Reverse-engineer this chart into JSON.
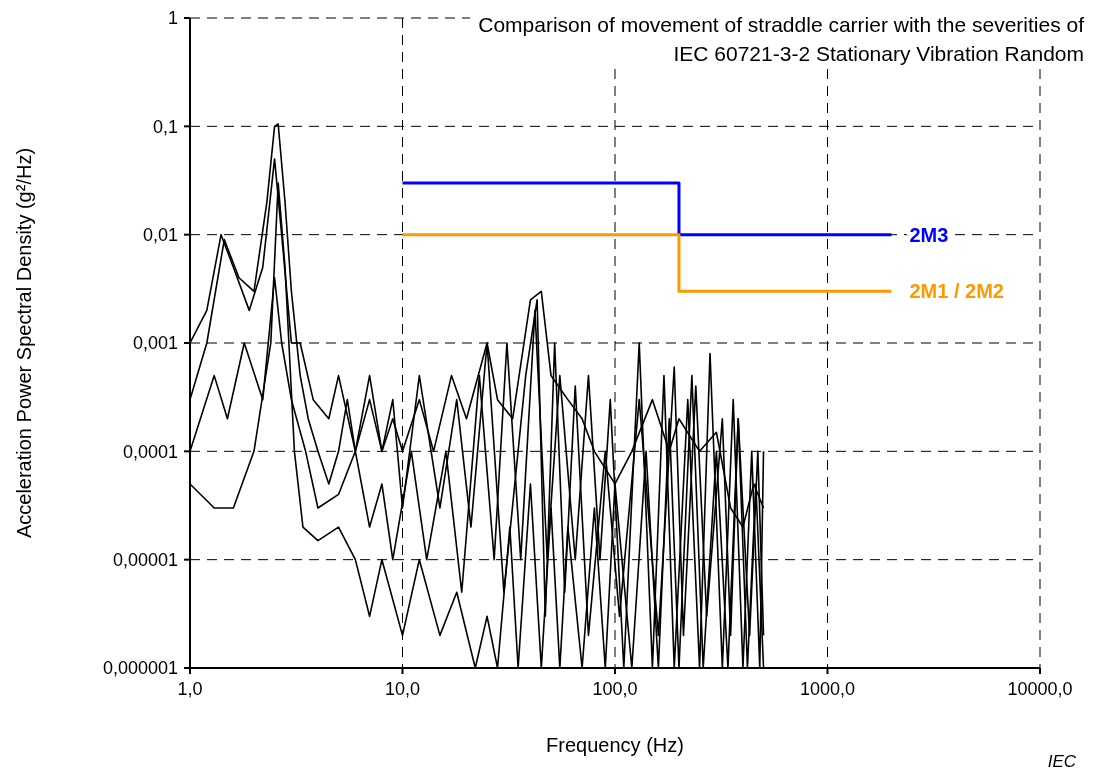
{
  "chart_data": {
    "type": "line",
    "title": "Comparison of movement of straddle carrier with the severities of\nIEC 60721-3-2  Stationary Vibration Random",
    "xlabel": "Frequency  (Hz)",
    "ylabel": "Acceleration Power Spectral Density (g²/Hz)",
    "annotations": [
      "IEC"
    ],
    "log": "xy",
    "grid": true,
    "line_style": "solid",
    "xlim": [
      1,
      10000
    ],
    "xticks": [
      {
        "value": 1,
        "label": "1,0"
      },
      {
        "value": 10,
        "label": "10,0"
      },
      {
        "value": 100,
        "label": "100,0"
      },
      {
        "value": 1000,
        "label": "1000,0"
      },
      {
        "value": 10000,
        "label": "10000,0"
      }
    ],
    "ylim": [
      1e-06,
      1
    ],
    "yticks": [
      {
        "value": 1e-06,
        "label": "0,000001"
      },
      {
        "value": 1e-05,
        "label": "0,00001"
      },
      {
        "value": 0.0001,
        "label": "0,0001"
      },
      {
        "value": 0.001,
        "label": "0,001"
      },
      {
        "value": 0.01,
        "label": "0,01"
      },
      {
        "value": 0.1,
        "label": "0,1"
      },
      1
    ],
    "series": [
      {
        "color": "#000000",
        "x": [
          1.0,
          1.2,
          1.45,
          1.7,
          2.0,
          2.3,
          2.5,
          2.6,
          2.8,
          3.0,
          3.3,
          3.6,
          4.0,
          4.5,
          5.0,
          5.5,
          6.0,
          7.0,
          8.0,
          9,
          10,
          12,
          14,
          17,
          20,
          25,
          28,
          33,
          40,
          45,
          50,
          60,
          70,
          80,
          100,
          120,
          150,
          180,
          200,
          250,
          300,
          350,
          400,
          450,
          500
        ],
        "values": [
          0.0003,
          0.001,
          0.009,
          0.004,
          0.003,
          0.02,
          0.1,
          0.105,
          0.02,
          0.003,
          0.0005,
          0.0002,
          0.0001,
          5e-05,
          0.0001,
          0.0003,
          0.0001,
          0.0003,
          0.0001,
          0.0002,
          0.0001,
          0.0003,
          0.0001,
          0.0005,
          0.0002,
          0.001,
          0.0003,
          0.0002,
          0.0025,
          0.003,
          0.0005,
          0.0003,
          0.0002,
          0.0001,
          5e-05,
          0.0001,
          0.0003,
          0.0001,
          0.0002,
          0.0001,
          0.00015,
          3e-05,
          2e-05,
          5e-05,
          3e-05
        ]
      },
      {
        "color": "#000000",
        "x": [
          1.0,
          1.3,
          1.6,
          2.0,
          2.4,
          2.6,
          2.8,
          3.1,
          3.4,
          4,
          5,
          6,
          7,
          8,
          10,
          12,
          15,
          18,
          22,
          25,
          28,
          32,
          35,
          40,
          45,
          50,
          55,
          60,
          70,
          80,
          90,
          100,
          120,
          140,
          160,
          180,
          200,
          230,
          260,
          300,
          340,
          380,
          420,
          460,
          500
        ],
        "values": [
          5e-05,
          3e-05,
          3e-05,
          0.0001,
          0.001,
          0.03,
          0.005,
          0.0001,
          2e-05,
          1.5e-05,
          2e-05,
          1e-05,
          3e-06,
          1e-05,
          2e-06,
          1e-05,
          2e-06,
          5e-06,
          1e-06,
          3e-06,
          1e-06,
          2e-05,
          1e-06,
          5e-05,
          1e-06,
          3e-05,
          1e-06,
          2e-05,
          1e-06,
          3e-05,
          1e-06,
          5e-05,
          1e-06,
          0.0001,
          1e-06,
          0.0002,
          1e-06,
          0.0005,
          1e-06,
          0.0001,
          1e-06,
          0.0002,
          1e-06,
          5e-05,
          1e-06
        ]
      },
      {
        "color": "#000000",
        "x": [
          1.0,
          1.3,
          1.5,
          1.8,
          2.2,
          2.5,
          2.7,
          3,
          3.5,
          4,
          5,
          6,
          7,
          8,
          9,
          11,
          13,
          16,
          19,
          23,
          27,
          31,
          36,
          42,
          48,
          55,
          65,
          75,
          85,
          95,
          110,
          130,
          150,
          170,
          190,
          220,
          250,
          280,
          320,
          360,
          400,
          440,
          480,
          500
        ],
        "values": [
          0.0001,
          0.0005,
          0.0002,
          0.001,
          0.0003,
          0.004,
          0.001,
          0.0003,
          0.0001,
          3e-05,
          4e-05,
          0.0001,
          2e-05,
          5e-05,
          1e-05,
          0.0001,
          1e-05,
          0.0001,
          5e-06,
          0.0005,
          1e-05,
          0.001,
          1e-05,
          0.002,
          1e-05,
          0.0005,
          1e-05,
          0.0005,
          1e-05,
          0.0003,
          1e-06,
          0.001,
          1e-06,
          0.0005,
          1e-06,
          0.0003,
          1e-06,
          0.0008,
          1e-06,
          0.0003,
          1e-06,
          0.0001,
          1e-06,
          0.0001
        ]
      },
      {
        "color": "#000000",
        "x": [
          1.0,
          1.2,
          1.4,
          1.6,
          1.9,
          2.2,
          2.5,
          2.7,
          3.0,
          3.3,
          3.8,
          4.5,
          5,
          6,
          7,
          8,
          9,
          10,
          12,
          15,
          18,
          21,
          25,
          30,
          38,
          43,
          47,
          52,
          58,
          65,
          75,
          90,
          105,
          130,
          160,
          190,
          210,
          240,
          270,
          320,
          350,
          380,
          430,
          470,
          500
        ],
        "values": [
          0.001,
          0.002,
          0.01,
          0.005,
          0.002,
          0.005,
          0.05,
          0.01,
          0.001,
          0.001,
          0.0003,
          0.0002,
          0.0005,
          0.0001,
          0.0005,
          0.0001,
          0.0003,
          3e-05,
          0.0005,
          3e-05,
          0.0003,
          2e-05,
          0.001,
          5e-06,
          0.0005,
          0.0025,
          3e-06,
          0.001,
          5e-06,
          0.0004,
          2e-06,
          0.0001,
          3e-06,
          0.0003,
          2e-06,
          0.0006,
          2e-06,
          0.0004,
          3e-06,
          0.0002,
          2e-06,
          0.0002,
          2e-06,
          0.0001,
          2e-06
        ]
      },
      {
        "type": "step",
        "name": "2M3",
        "color": "#0000ff",
        "x": [
          10,
          200,
          2000
        ],
        "values": [
          0.03,
          0.01,
          0.01
        ]
      },
      {
        "type": "step",
        "name": "2M1 / 2M2",
        "color": "#ff9900",
        "x": [
          10,
          200,
          2000
        ],
        "values": [
          0.01,
          0.003,
          0.003
        ]
      }
    ]
  }
}
